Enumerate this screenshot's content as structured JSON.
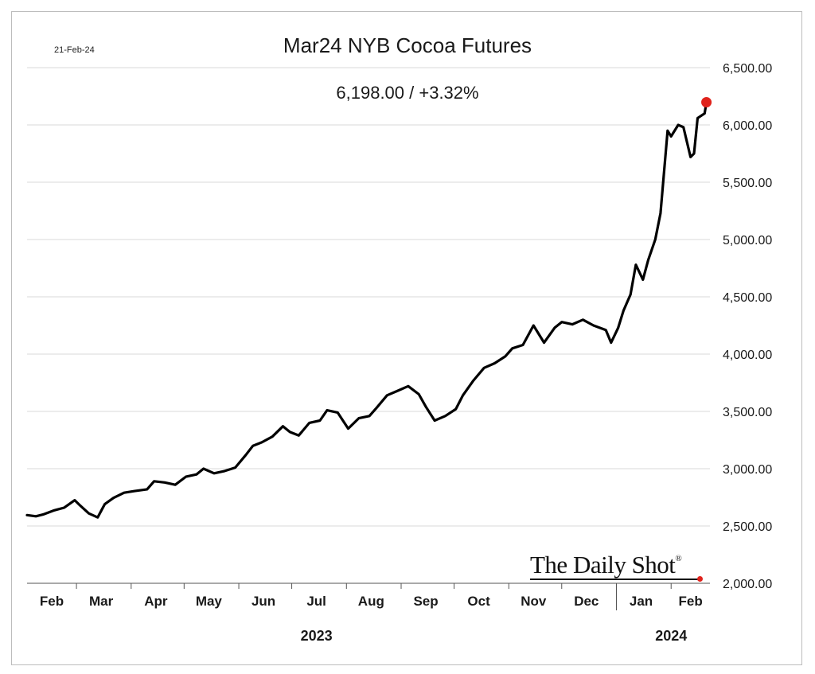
{
  "header": {
    "date_stamp": "21-Feb-24",
    "title": "Mar24 NYB Cocoa Futures",
    "subtitle": "6,198.00  /  +3.32%"
  },
  "brand": {
    "name": "The Daily Shot",
    "mark": "®"
  },
  "colors": {
    "line": "#000000",
    "last_point": "#e0231c",
    "grid": "#d9d9d9"
  },
  "chart_data": {
    "type": "line",
    "title": "Mar24 NYB Cocoa Futures",
    "subtitle": "6,198.00  /  +3.32%",
    "xlabel": "",
    "ylabel": "",
    "ylim": [
      2000,
      6500
    ],
    "y_ticks": [
      2000,
      2500,
      3000,
      3500,
      4000,
      4500,
      5000,
      5500,
      6000,
      6500
    ],
    "y_tick_labels": [
      "2,000.00",
      "2,500.00",
      "3,000.00",
      "3,500.00",
      "4,000.00",
      "4,500.00",
      "5,000.00",
      "5,500.00",
      "6,000.00",
      "6,500.00"
    ],
    "x_domain": [
      "2023-02-01",
      "2024-02-23"
    ],
    "month_labels": [
      {
        "label": "Feb",
        "date": "2023-02-15"
      },
      {
        "label": "Mar",
        "date": "2023-03-15"
      },
      {
        "label": "Apr",
        "date": "2023-04-15"
      },
      {
        "label": "May",
        "date": "2023-05-15"
      },
      {
        "label": "Jun",
        "date": "2023-06-15"
      },
      {
        "label": "Jul",
        "date": "2023-07-15"
      },
      {
        "label": "Aug",
        "date": "2023-08-15"
      },
      {
        "label": "Sep",
        "date": "2023-09-15"
      },
      {
        "label": "Oct",
        "date": "2023-10-15"
      },
      {
        "label": "Nov",
        "date": "2023-11-15"
      },
      {
        "label": "Dec",
        "date": "2023-12-15"
      },
      {
        "label": "Jan",
        "date": "2024-01-15"
      },
      {
        "label": "Feb",
        "date": "2024-02-12"
      }
    ],
    "month_ticks": [
      "2023-03-01",
      "2023-04-01",
      "2023-05-01",
      "2023-06-01",
      "2023-07-01",
      "2023-08-01",
      "2023-09-01",
      "2023-10-01",
      "2023-11-01",
      "2023-12-01",
      "2024-02-01"
    ],
    "year_divider": "2024-01-01",
    "year_labels": [
      {
        "label": "2023",
        "date": "2023-07-15"
      },
      {
        "label": "2024",
        "date": "2024-02-01"
      }
    ],
    "grid": true,
    "series": [
      {
        "x": [
          "2023-02-01",
          "2023-02-06",
          "2023-02-10",
          "2023-02-16",
          "2023-02-22",
          "2023-02-28",
          "2023-03-03",
          "2023-03-08",
          "2023-03-13",
          "2023-03-17",
          "2023-03-22",
          "2023-03-28",
          "2023-04-03",
          "2023-04-10",
          "2023-04-14",
          "2023-04-20",
          "2023-04-26",
          "2023-05-02",
          "2023-05-08",
          "2023-05-12",
          "2023-05-18",
          "2023-05-24",
          "2023-05-30",
          "2023-06-05",
          "2023-06-09",
          "2023-06-14",
          "2023-06-20",
          "2023-06-26",
          "2023-06-30",
          "2023-07-05",
          "2023-07-11",
          "2023-07-17",
          "2023-07-21",
          "2023-07-27",
          "2023-08-02",
          "2023-08-08",
          "2023-08-14",
          "2023-08-18",
          "2023-08-24",
          "2023-08-30",
          "2023-09-05",
          "2023-09-11",
          "2023-09-15",
          "2023-09-20",
          "2023-09-26",
          "2023-10-02",
          "2023-10-06",
          "2023-10-12",
          "2023-10-18",
          "2023-10-24",
          "2023-10-30",
          "2023-11-03",
          "2023-11-09",
          "2023-11-15",
          "2023-11-21",
          "2023-11-27",
          "2023-12-01",
          "2023-12-07",
          "2023-12-13",
          "2023-12-19",
          "2023-12-26",
          "2023-12-29",
          "2024-01-02",
          "2024-01-05",
          "2024-01-09",
          "2024-01-12",
          "2024-01-16",
          "2024-01-19",
          "2024-01-23",
          "2024-01-26",
          "2024-01-30",
          "2024-02-01",
          "2024-02-05",
          "2024-02-08",
          "2024-02-12",
          "2024-02-14",
          "2024-02-16",
          "2024-02-20",
          "2024-02-21"
        ],
        "values": [
          2595,
          2585,
          2600,
          2635,
          2660,
          2725,
          2680,
          2610,
          2575,
          2690,
          2745,
          2790,
          2805,
          2820,
          2890,
          2880,
          2860,
          2930,
          2950,
          3000,
          2960,
          2980,
          3010,
          3120,
          3200,
          3230,
          3280,
          3370,
          3320,
          3290,
          3400,
          3420,
          3510,
          3490,
          3350,
          3440,
          3460,
          3530,
          3640,
          3680,
          3720,
          3650,
          3540,
          3420,
          3460,
          3520,
          3640,
          3770,
          3880,
          3920,
          3980,
          4050,
          4080,
          4250,
          4100,
          4230,
          4280,
          4260,
          4300,
          4250,
          4210,
          4100,
          4230,
          4380,
          4520,
          4780,
          4650,
          4820,
          5000,
          5230,
          5950,
          5900,
          6000,
          5980,
          5720,
          5750,
          6060,
          6100,
          6198
        ]
      }
    ],
    "last_point": {
      "date": "2024-02-21",
      "value": 6198
    }
  }
}
